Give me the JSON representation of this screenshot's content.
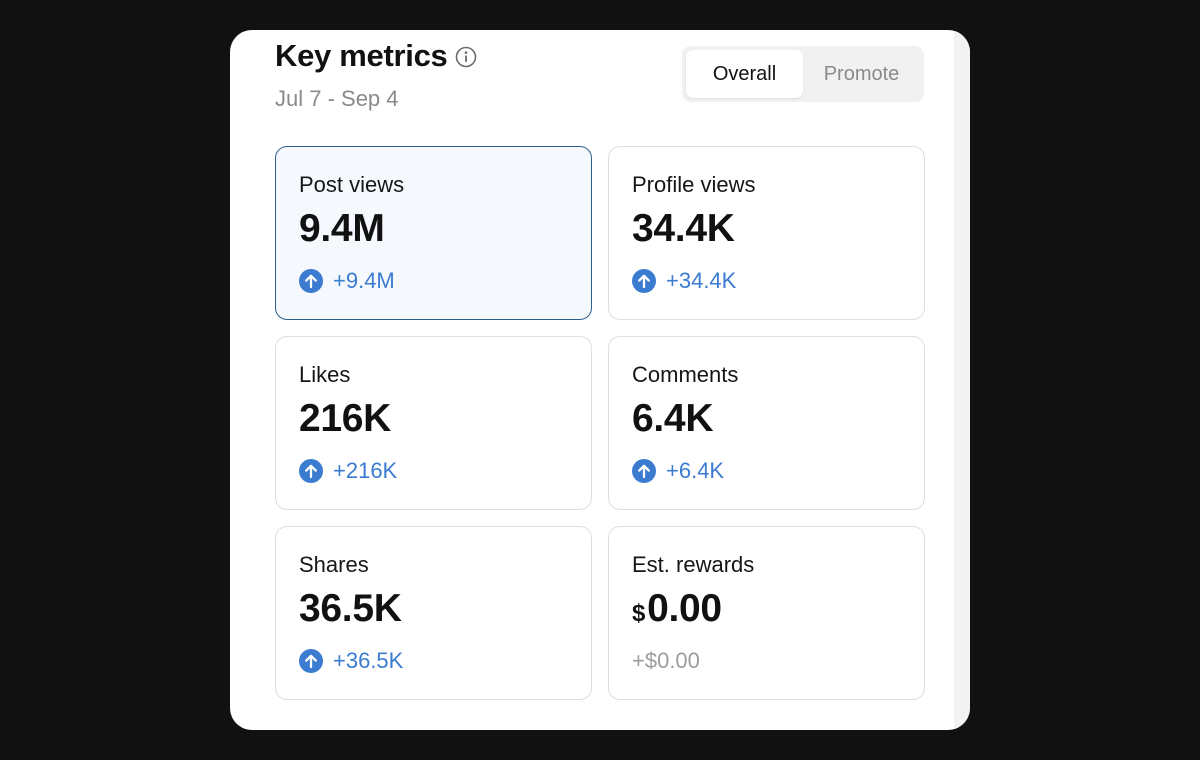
{
  "header": {
    "title": "Key metrics",
    "date_range": "Jul 7 - Sep 4",
    "info_icon": "info-circle-icon"
  },
  "toggle": {
    "options": [
      {
        "label": "Overall",
        "active": true
      },
      {
        "label": "Promote",
        "active": false
      }
    ]
  },
  "colors": {
    "accent": "#3b7bd0",
    "selected_border": "#2e5f8c",
    "selected_bg": "#f5f9fd",
    "muted": "#9d9d9d"
  },
  "metrics": [
    {
      "label": "Post views",
      "currency": "",
      "value": "9.4M",
      "delta": "+9.4M",
      "trend": "up",
      "selected": true
    },
    {
      "label": "Profile views",
      "currency": "",
      "value": "34.4K",
      "delta": "+34.4K",
      "trend": "up",
      "selected": false
    },
    {
      "label": "Likes",
      "currency": "",
      "value": "216K",
      "delta": "+216K",
      "trend": "up",
      "selected": false
    },
    {
      "label": "Comments",
      "currency": "",
      "value": "6.4K",
      "delta": "+6.4K",
      "trend": "up",
      "selected": false
    },
    {
      "label": "Shares",
      "currency": "",
      "value": "36.5K",
      "delta": "+36.5K",
      "trend": "up",
      "selected": false
    },
    {
      "label": "Est. rewards",
      "currency": "$",
      "value": "0.00",
      "delta": "+$0.00",
      "trend": "none",
      "selected": false
    }
  ]
}
